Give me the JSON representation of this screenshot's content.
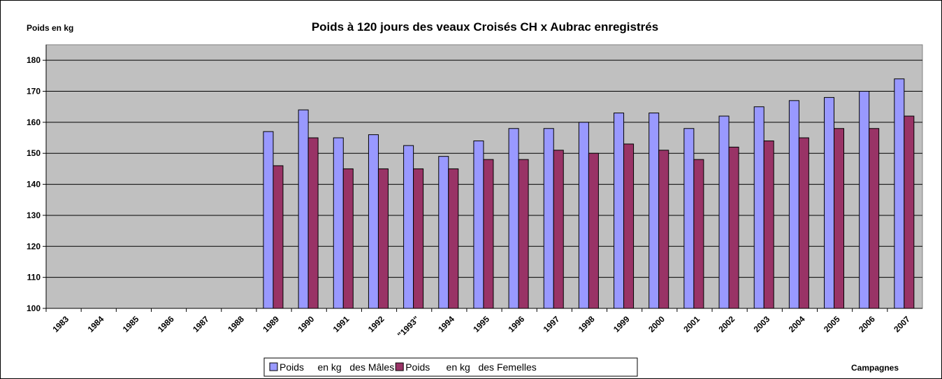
{
  "chart_data": {
    "type": "bar",
    "title": "Poids à 120 jours des veaux Croisés CH x Aubrac  enregistrés",
    "y_label": "Poids en kg",
    "x_label": "Campagnes",
    "categories": [
      "1983",
      "1984",
      "1985",
      "1986",
      "1987",
      "1988",
      "1989",
      "1990",
      "1991",
      "1992",
      "\"1993\"",
      "1994",
      "1995",
      "1996",
      "1997",
      "1998",
      "1999",
      "2000",
      "2001",
      "2002",
      "2003",
      "2004",
      "2005",
      "2006",
      "2007"
    ],
    "series": [
      {
        "name": "Poids     en kg   des Mâles",
        "color": "#9999ff",
        "values": [
          null,
          null,
          null,
          null,
          null,
          null,
          157,
          164,
          155,
          156,
          152.5,
          149,
          154,
          158,
          158,
          160,
          163,
          163,
          158,
          162,
          165,
          167,
          168,
          170,
          174
        ]
      },
      {
        "name": "Poids      en kg   des Femelles",
        "color": "#993366",
        "values": [
          null,
          null,
          null,
          null,
          null,
          null,
          146,
          155,
          145,
          145,
          145,
          145,
          148,
          148,
          151,
          150,
          153,
          151,
          148,
          152,
          154,
          155,
          158,
          158,
          162
        ]
      }
    ],
    "ylim": [
      100,
      185
    ],
    "yticks": [
      100,
      110,
      120,
      130,
      140,
      150,
      160,
      170,
      180
    ],
    "grid": true,
    "plot_background": "#c0c0c0",
    "legend": "bottom"
  }
}
